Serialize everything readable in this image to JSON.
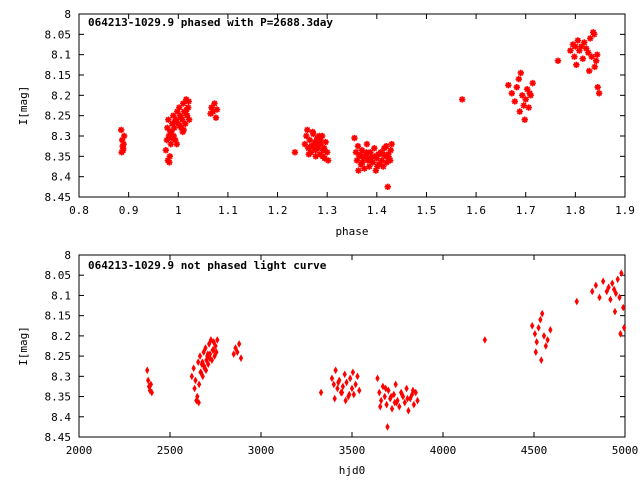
{
  "chart_data": [
    {
      "type": "scatter",
      "title": "064213-1029.9 phased with P=2688.3day",
      "xlabel": "phase",
      "ylabel": "I[mag]",
      "xlim": [
        0.8,
        1.9
      ],
      "ylim": [
        8.45,
        8.0
      ],
      "y_axis_inverted": true,
      "xticks": [
        "0.8",
        "0.9",
        "1",
        "1.1",
        "1.2",
        "1.3",
        "1.4",
        "1.5",
        "1.6",
        "1.7",
        "1.8",
        "1.9"
      ],
      "yticks": [
        "8",
        "8.05",
        "8.1",
        "8.15",
        "8.2",
        "8.25",
        "8.3",
        "8.35",
        "8.4",
        "8.45"
      ],
      "marker": "star",
      "color": "#ff0000",
      "grid": false,
      "x": [
        0.885,
        0.887,
        0.888,
        0.889,
        0.89,
        0.891,
        0.886,
        0.889,
        0.975,
        0.977,
        0.978,
        0.98,
        0.981,
        0.983,
        0.985,
        0.986,
        0.988,
        0.99,
        0.992,
        0.994,
        0.996,
        0.998,
        1.0,
        1.002,
        1.004,
        1.006,
        1.008,
        1.01,
        1.012,
        1.014,
        1.016,
        1.018,
        1.02,
        1.022,
        0.979,
        0.984,
        0.991,
        0.997,
        1.003,
        1.009,
        1.015,
        1.021,
        0.982,
        0.993,
        1.005,
        1.017,
        0.987,
        1.011,
        1.065,
        1.067,
        1.07,
        1.073,
        1.076,
        1.078,
        1.235,
        1.255,
        1.258,
        1.26,
        1.262,
        1.265,
        1.267,
        1.27,
        1.272,
        1.275,
        1.277,
        1.28,
        1.282,
        1.285,
        1.287,
        1.29,
        1.292,
        1.295,
        1.297,
        1.3,
        1.302,
        1.263,
        1.271,
        1.279,
        1.286,
        1.294,
        1.268,
        1.276,
        1.284,
        1.291,
        1.355,
        1.358,
        1.36,
        1.362,
        1.365,
        1.368,
        1.37,
        1.373,
        1.375,
        1.378,
        1.38,
        1.382,
        1.385,
        1.387,
        1.39,
        1.392,
        1.395,
        1.398,
        1.4,
        1.403,
        1.405,
        1.408,
        1.41,
        1.413,
        1.415,
        1.418,
        1.42,
        1.423,
        1.425,
        1.428,
        1.43,
        1.363,
        1.371,
        1.379,
        1.388,
        1.396,
        1.404,
        1.412,
        1.419,
        1.427,
        1.367,
        1.383,
        1.401,
        1.422,
        1.572,
        1.665,
        1.672,
        1.678,
        1.682,
        1.686,
        1.69,
        1.693,
        1.696,
        1.7,
        1.703,
        1.706,
        1.71,
        1.714,
        1.688,
        1.698,
        1.708,
        1.765,
        1.79,
        1.795,
        1.798,
        1.802,
        1.805,
        1.808,
        1.812,
        1.815,
        1.818,
        1.822,
        1.826,
        1.83,
        1.833,
        1.836,
        1.839,
        1.842,
        1.845,
        1.848,
        1.8,
        1.828,
        1.838,
        1.844
      ],
      "y": [
        8.285,
        8.31,
        8.325,
        8.335,
        8.32,
        8.3,
        8.34,
        8.33,
        8.335,
        8.31,
        8.28,
        8.26,
        8.3,
        8.35,
        8.32,
        8.29,
        8.27,
        8.25,
        8.28,
        8.31,
        8.26,
        8.24,
        8.27,
        8.23,
        8.25,
        8.28,
        8.26,
        8.22,
        8.24,
        8.27,
        8.21,
        8.25,
        8.23,
        8.26,
        8.36,
        8.29,
        8.3,
        8.32,
        8.275,
        8.29,
        8.245,
        8.215,
        8.365,
        8.265,
        8.255,
        8.235,
        8.305,
        8.285,
        8.245,
        8.23,
        8.24,
        8.22,
        8.255,
        8.235,
        8.34,
        8.32,
        8.3,
        8.285,
        8.33,
        8.31,
        8.34,
        8.325,
        8.295,
        8.315,
        8.35,
        8.305,
        8.33,
        8.345,
        8.32,
        8.3,
        8.335,
        8.355,
        8.315,
        8.34,
        8.36,
        8.345,
        8.29,
        8.32,
        8.31,
        8.33,
        8.325,
        8.335,
        8.3,
        8.35,
        8.305,
        8.34,
        8.36,
        8.325,
        8.35,
        8.37,
        8.335,
        8.355,
        8.38,
        8.345,
        8.32,
        8.36,
        8.375,
        8.34,
        8.35,
        8.365,
        8.33,
        8.385,
        8.355,
        8.345,
        8.37,
        8.34,
        8.36,
        8.375,
        8.33,
        8.35,
        8.365,
        8.345,
        8.355,
        8.335,
        8.32,
        8.385,
        8.365,
        8.34,
        8.36,
        8.35,
        8.37,
        8.345,
        8.325,
        8.36,
        8.345,
        8.355,
        8.375,
        8.425,
        8.21,
        8.175,
        8.195,
        8.215,
        8.18,
        8.16,
        8.145,
        8.2,
        8.225,
        8.21,
        8.185,
        8.23,
        8.2,
        8.17,
        8.24,
        8.26,
        8.195,
        8.115,
        8.09,
        8.075,
        8.105,
        8.125,
        8.065,
        8.09,
        8.08,
        8.11,
        8.07,
        8.085,
        8.095,
        8.06,
        8.105,
        8.045,
        8.13,
        8.115,
        8.18,
        8.195,
        8.08,
        8.14,
        8.05,
        8.1
      ]
    },
    {
      "type": "scatter",
      "title": "064213-1029.9 not phased light curve",
      "xlabel": "hjd0",
      "ylabel": "I[mag]",
      "xlim": [
        2000,
        5000
      ],
      "ylim": [
        8.45,
        8.0
      ],
      "y_axis_inverted": true,
      "xticks": [
        "2000",
        "2500",
        "3000",
        "3500",
        "4000",
        "4500",
        "5000"
      ],
      "yticks": [
        "8",
        "8.05",
        "8.1",
        "8.15",
        "8.2",
        "8.25",
        "8.3",
        "8.35",
        "8.4",
        "8.45"
      ],
      "marker": "diamond",
      "color": "#ff0000",
      "grid": false,
      "x": [
        2375,
        2380,
        2385,
        2390,
        2395,
        2400,
        2620,
        2630,
        2640,
        2650,
        2655,
        2660,
        2665,
        2670,
        2675,
        2680,
        2685,
        2690,
        2695,
        2700,
        2705,
        2710,
        2715,
        2720,
        2725,
        2730,
        2735,
        2740,
        2745,
        2750,
        2755,
        2760,
        2635,
        2645,
        2668,
        2678,
        2698,
        2718,
        2738,
        2658,
        2688,
        2708,
        2850,
        2860,
        2870,
        2880,
        2890,
        3330,
        3390,
        3400,
        3410,
        3420,
        3430,
        3440,
        3450,
        3460,
        3470,
        3480,
        3490,
        3500,
        3510,
        3520,
        3530,
        3540,
        3405,
        3425,
        3445,
        3465,
        3485,
        3505,
        3640,
        3650,
        3660,
        3670,
        3680,
        3690,
        3700,
        3710,
        3720,
        3730,
        3740,
        3750,
        3760,
        3770,
        3780,
        3790,
        3800,
        3810,
        3820,
        3830,
        3840,
        3850,
        3860,
        3655,
        3685,
        3715,
        3745,
        3775,
        3805,
        3835,
        3695,
        3735,
        4230,
        4490,
        4505,
        4515,
        4525,
        4535,
        4545,
        4555,
        4565,
        4575,
        4590,
        4510,
        4540,
        4735,
        4820,
        4840,
        4860,
        4880,
        4900,
        4910,
        4920,
        4930,
        4940,
        4950,
        4960,
        4970,
        4980,
        4990,
        4995,
        4945,
        4975
      ],
      "y": [
        8.285,
        8.31,
        8.325,
        8.335,
        8.32,
        8.34,
        8.3,
        8.28,
        8.31,
        8.35,
        8.265,
        8.32,
        8.25,
        8.29,
        8.27,
        8.3,
        8.24,
        8.28,
        8.23,
        8.26,
        8.25,
        8.27,
        8.22,
        8.245,
        8.21,
        8.26,
        8.235,
        8.215,
        8.25,
        8.225,
        8.24,
        8.21,
        8.33,
        8.36,
        8.29,
        8.265,
        8.285,
        8.255,
        8.235,
        8.365,
        8.275,
        8.245,
        8.245,
        8.23,
        8.24,
        8.22,
        8.255,
        8.34,
        8.305,
        8.32,
        8.285,
        8.33,
        8.31,
        8.34,
        8.325,
        8.295,
        8.315,
        8.35,
        8.305,
        8.33,
        8.345,
        8.32,
        8.3,
        8.335,
        8.355,
        8.315,
        8.34,
        8.36,
        8.345,
        8.29,
        8.305,
        8.34,
        8.36,
        8.325,
        8.35,
        8.37,
        8.335,
        8.355,
        8.38,
        8.345,
        8.32,
        8.36,
        8.375,
        8.34,
        8.35,
        8.365,
        8.33,
        8.385,
        8.355,
        8.345,
        8.37,
        8.34,
        8.36,
        8.375,
        8.33,
        8.35,
        8.365,
        8.345,
        8.355,
        8.335,
        8.425,
        8.365,
        8.21,
        8.175,
        8.195,
        8.215,
        8.18,
        8.16,
        8.145,
        8.2,
        8.225,
        8.21,
        8.185,
        8.24,
        8.26,
        8.115,
        8.09,
        8.075,
        8.105,
        8.065,
        8.09,
        8.08,
        8.11,
        8.07,
        8.085,
        8.095,
        8.06,
        8.105,
        8.045,
        8.13,
        8.18,
        8.14,
        8.195
      ]
    }
  ]
}
